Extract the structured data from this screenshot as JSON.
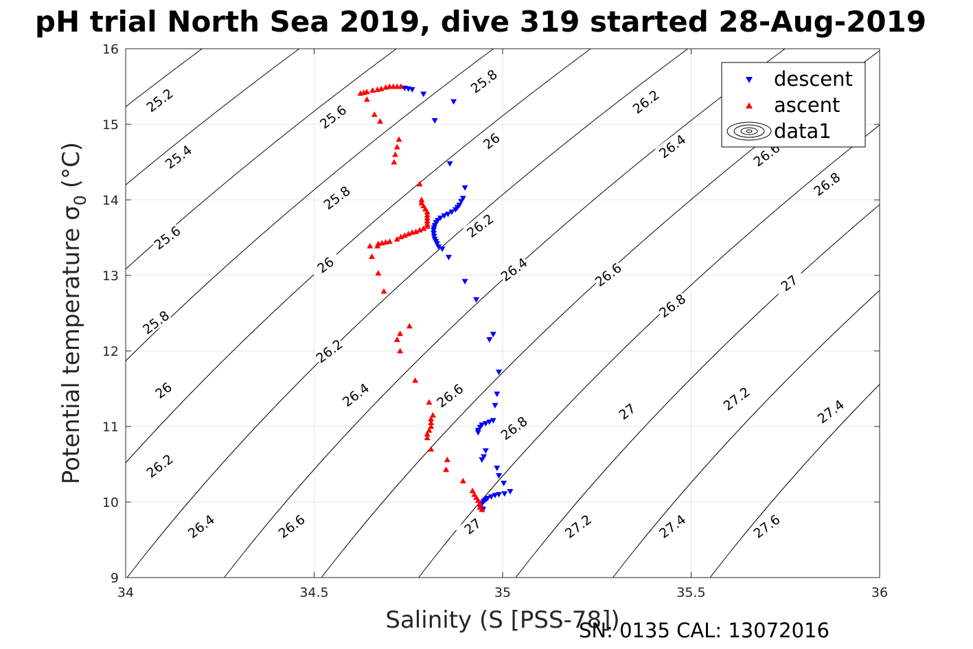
{
  "chart_data": {
    "type": "scatter",
    "title": "pH trial North Sea 2019, dive 319 started 28-Aug-2019",
    "xlabel": "Salinity (S [PSS-78])",
    "ylabel": "Potential temperature σ",
    "ylabel_subscript": "0",
    "ylabel_unit": "(°C)",
    "footer": "SN: 0135  CAL: 13072016",
    "xlim": [
      34,
      36
    ],
    "ylim": [
      9,
      16
    ],
    "x_ticks": [
      {
        "value": 34,
        "label": "34"
      },
      {
        "value": 34.5,
        "label": "34.5"
      },
      {
        "value": 35,
        "label": "35"
      },
      {
        "value": 35.5,
        "label": "35.5"
      },
      {
        "value": 36,
        "label": "36"
      }
    ],
    "y_ticks": [
      {
        "value": 9,
        "label": "9"
      },
      {
        "value": 10,
        "label": "10"
      },
      {
        "value": 11,
        "label": "11"
      },
      {
        "value": 12,
        "label": "12"
      },
      {
        "value": 13,
        "label": "13"
      },
      {
        "value": 14,
        "label": "14"
      },
      {
        "value": 15,
        "label": "15"
      },
      {
        "value": 16,
        "label": "16"
      }
    ],
    "grid": true,
    "legend_position": "top-right",
    "legend": [
      {
        "label": "descent",
        "marker": "triangle-down",
        "color": "#0000ff"
      },
      {
        "label": "ascent",
        "marker": "triangle-up",
        "color": "#ff0000"
      },
      {
        "label": "data1",
        "marker": "contour",
        "color": "#000000"
      }
    ],
    "series": [
      {
        "name": "descent",
        "color": "#0000ff",
        "marker": "triangle-down",
        "points": [
          [
            34.74,
            15.48
          ],
          [
            34.75,
            15.47
          ],
          [
            34.76,
            15.46
          ],
          [
            34.79,
            15.4
          ],
          [
            34.87,
            15.3
          ],
          [
            34.82,
            15.05
          ],
          [
            34.86,
            14.48
          ],
          [
            34.9,
            14.16
          ],
          [
            34.895,
            14.02
          ],
          [
            34.89,
            13.98
          ],
          [
            34.885,
            13.93
          ],
          [
            34.88,
            13.9
          ],
          [
            34.875,
            13.87
          ],
          [
            34.865,
            13.84
          ],
          [
            34.855,
            13.81
          ],
          [
            34.845,
            13.79
          ],
          [
            34.835,
            13.76
          ],
          [
            34.828,
            13.73
          ],
          [
            34.823,
            13.7
          ],
          [
            34.82,
            13.66
          ],
          [
            34.818,
            13.63
          ],
          [
            34.817,
            13.6
          ],
          [
            34.817,
            13.56
          ],
          [
            34.818,
            13.52
          ],
          [
            34.82,
            13.48
          ],
          [
            34.823,
            13.45
          ],
          [
            34.826,
            13.42
          ],
          [
            34.83,
            13.38
          ],
          [
            34.84,
            13.35
          ],
          [
            34.857,
            13.24
          ],
          [
            34.9,
            12.92
          ],
          [
            34.93,
            12.68
          ],
          [
            34.975,
            12.22
          ],
          [
            34.965,
            12.15
          ],
          [
            34.99,
            11.72
          ],
          [
            34.985,
            11.43
          ],
          [
            34.98,
            11.28
          ],
          [
            34.975,
            11.08
          ],
          [
            34.965,
            11.06
          ],
          [
            34.955,
            11.04
          ],
          [
            34.945,
            11.02
          ],
          [
            34.94,
            10.99
          ],
          [
            34.935,
            10.95
          ],
          [
            34.935,
            10.92
          ],
          [
            34.955,
            10.68
          ],
          [
            34.95,
            10.6
          ],
          [
            34.945,
            10.56
          ],
          [
            34.985,
            10.45
          ],
          [
            34.99,
            10.35
          ],
          [
            35.003,
            10.25
          ],
          [
            35.02,
            10.14
          ],
          [
            35.005,
            10.11
          ],
          [
            34.99,
            10.1
          ],
          [
            34.98,
            10.09
          ],
          [
            34.97,
            10.07
          ],
          [
            34.96,
            10.05
          ],
          [
            34.955,
            10.03
          ],
          [
            34.95,
            10.01
          ],
          [
            34.945,
            9.98
          ],
          [
            34.942,
            9.95
          ],
          [
            34.94,
            9.93
          ],
          [
            34.945,
            9.91
          ],
          [
            34.948,
            9.9
          ]
        ]
      },
      {
        "name": "ascent",
        "color": "#ff0000",
        "marker": "triangle-up",
        "points": [
          [
            34.623,
            15.41
          ],
          [
            34.632,
            15.42
          ],
          [
            34.64,
            15.43
          ],
          [
            34.655,
            15.45
          ],
          [
            34.668,
            15.46
          ],
          [
            34.678,
            15.47
          ],
          [
            34.69,
            15.49
          ],
          [
            34.7,
            15.5
          ],
          [
            34.71,
            15.5
          ],
          [
            34.72,
            15.5
          ],
          [
            34.73,
            15.5
          ],
          [
            34.64,
            15.33
          ],
          [
            34.66,
            15.13
          ],
          [
            34.675,
            15.04
          ],
          [
            34.725,
            14.8
          ],
          [
            34.72,
            14.7
          ],
          [
            34.715,
            14.6
          ],
          [
            34.712,
            14.5
          ],
          [
            34.78,
            14.21
          ],
          [
            34.785,
            14.0
          ],
          [
            34.785,
            13.96
          ],
          [
            34.79,
            13.92
          ],
          [
            34.795,
            13.88
          ],
          [
            34.8,
            13.84
          ],
          [
            34.8,
            13.8
          ],
          [
            34.8,
            13.76
          ],
          [
            34.8,
            13.72
          ],
          [
            34.8,
            13.68
          ],
          [
            34.8,
            13.65
          ],
          [
            34.79,
            13.62
          ],
          [
            34.78,
            13.6
          ],
          [
            34.77,
            13.58
          ],
          [
            34.76,
            13.57
          ],
          [
            34.75,
            13.55
          ],
          [
            34.74,
            13.53
          ],
          [
            34.73,
            13.51
          ],
          [
            34.72,
            13.48
          ],
          [
            34.7,
            13.45
          ],
          [
            34.69,
            13.44
          ],
          [
            34.68,
            13.43
          ],
          [
            34.67,
            13.42
          ],
          [
            34.648,
            13.39
          ],
          [
            34.668,
            13.39
          ],
          [
            34.653,
            13.25
          ],
          [
            34.67,
            13.03
          ],
          [
            34.685,
            12.79
          ],
          [
            34.753,
            12.33
          ],
          [
            34.728,
            12.23
          ],
          [
            34.72,
            12.15
          ],
          [
            34.728,
            12.0
          ],
          [
            34.768,
            11.61
          ],
          [
            34.805,
            11.32
          ],
          [
            34.815,
            11.15
          ],
          [
            34.81,
            11.1
          ],
          [
            34.81,
            11.05
          ],
          [
            34.81,
            11.0
          ],
          [
            34.805,
            10.95
          ],
          [
            34.8,
            10.9
          ],
          [
            34.8,
            10.85
          ],
          [
            34.81,
            10.7
          ],
          [
            34.853,
            10.56
          ],
          [
            34.85,
            10.43
          ],
          [
            34.895,
            10.28
          ],
          [
            34.92,
            10.15
          ],
          [
            34.925,
            10.1
          ],
          [
            34.93,
            10.06
          ],
          [
            34.935,
            10.02
          ],
          [
            34.94,
            9.98
          ],
          [
            34.94,
            9.93
          ],
          [
            34.945,
            9.9
          ]
        ]
      }
    ],
    "contours": [
      {
        "value": 25.2,
        "label": "25.2"
      },
      {
        "value": 25.4,
        "label": "25.4"
      },
      {
        "value": 25.6,
        "label": "25.6"
      },
      {
        "value": 25.8,
        "label": "25.8"
      },
      {
        "value": 26,
        "label": "26"
      },
      {
        "value": 26.2,
        "label": "26.2"
      },
      {
        "value": 26.4,
        "label": "26.4"
      },
      {
        "value": 26.6,
        "label": "26.6"
      },
      {
        "value": 26.8,
        "label": "26.8"
      },
      {
        "value": 27,
        "label": "27"
      },
      {
        "value": 27.2,
        "label": "27.2"
      },
      {
        "value": 27.4,
        "label": "27.4"
      },
      {
        "value": 27.6,
        "label": "27.6"
      }
    ],
    "contour_labels": [
      {
        "label": "25.2",
        "x": 34.09,
        "y": 15.32
      },
      {
        "label": "25.4",
        "x": 34.14,
        "y": 14.57
      },
      {
        "label": "25.6",
        "x": 34.11,
        "y": 13.5
      },
      {
        "label": "25.6",
        "x": 34.55,
        "y": 15.1
      },
      {
        "label": "25.8",
        "x": 34.08,
        "y": 12.38
      },
      {
        "label": "25.8",
        "x": 34.56,
        "y": 14.03
      },
      {
        "label": "25.8",
        "x": 34.95,
        "y": 15.57
      },
      {
        "label": "26",
        "x": 34.1,
        "y": 11.48
      },
      {
        "label": "26",
        "x": 34.53,
        "y": 13.14
      },
      {
        "label": "26",
        "x": 34.97,
        "y": 14.78
      },
      {
        "label": "26.2",
        "x": 34.09,
        "y": 10.48
      },
      {
        "label": "26.2",
        "x": 34.54,
        "y": 12.0
      },
      {
        "label": "26.2",
        "x": 34.94,
        "y": 13.66
      },
      {
        "label": "26.2",
        "x": 35.38,
        "y": 15.3
      },
      {
        "label": "26.4",
        "x": 34.2,
        "y": 9.68
      },
      {
        "label": "26.4",
        "x": 34.61,
        "y": 11.42
      },
      {
        "label": "26.4",
        "x": 35.03,
        "y": 13.08
      },
      {
        "label": "26.4",
        "x": 35.45,
        "y": 14.71
      },
      {
        "label": "26.6",
        "x": 34.44,
        "y": 9.68
      },
      {
        "label": "26.6",
        "x": 34.86,
        "y": 11.41
      },
      {
        "label": "26.6",
        "x": 35.28,
        "y": 13.01
      },
      {
        "label": "26.6",
        "x": 35.7,
        "y": 14.6
      },
      {
        "label": "26.8",
        "x": 35.03,
        "y": 10.98
      },
      {
        "label": "26.8",
        "x": 35.45,
        "y": 12.6
      },
      {
        "label": "26.8",
        "x": 35.86,
        "y": 14.21
      },
      {
        "label": "27",
        "x": 34.92,
        "y": 9.68
      },
      {
        "label": "27",
        "x": 35.33,
        "y": 11.2
      },
      {
        "label": "27",
        "x": 35.76,
        "y": 12.9
      },
      {
        "label": "27.2",
        "x": 35.2,
        "y": 9.68
      },
      {
        "label": "27.2",
        "x": 35.62,
        "y": 11.37
      },
      {
        "label": "27.4",
        "x": 35.45,
        "y": 9.68
      },
      {
        "label": "27.4",
        "x": 35.87,
        "y": 11.2
      },
      {
        "label": "27.6",
        "x": 35.7,
        "y": 9.68
      }
    ]
  }
}
